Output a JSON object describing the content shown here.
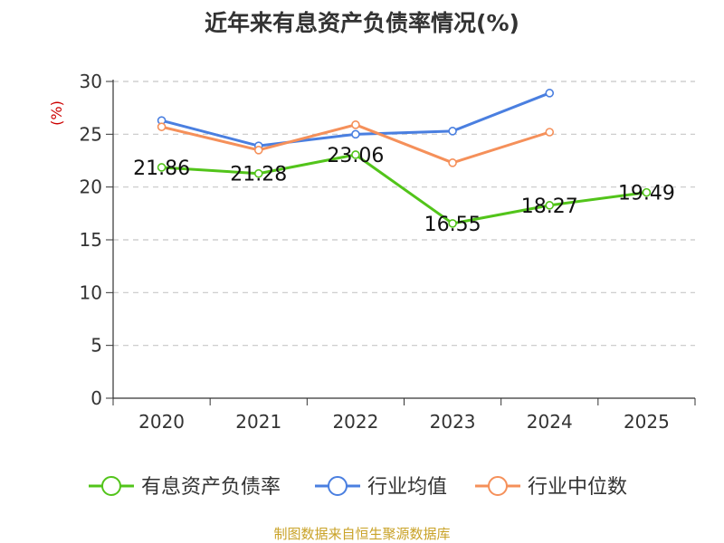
{
  "title": "近年来有息资产负债率情况(%)",
  "source": "制图数据来自恒生聚源数据库",
  "chart_data": {
    "type": "line",
    "title": "近年来有息资产负债率情况(%)",
    "ylabel": "(%)",
    "xlabel": "",
    "categories": [
      "2020",
      "2021",
      "2022",
      "2023",
      "2024",
      "2025"
    ],
    "ylim": [
      0,
      30
    ],
    "yticks": [
      0,
      5,
      10,
      15,
      20,
      25,
      30
    ],
    "grid": true,
    "legend_position": "bottom",
    "series": [
      {
        "name": "有息资产负债率",
        "color": "#52c41a",
        "values": [
          21.86,
          21.28,
          23.06,
          16.55,
          18.27,
          19.49
        ],
        "labels": [
          "21.86",
          "21.28",
          "23.06",
          "16.55",
          "18.27",
          "19.49"
        ]
      },
      {
        "name": "行业均值",
        "color": "#4a7fe0",
        "values": [
          26.3,
          23.9,
          25.0,
          25.3,
          28.9,
          null
        ]
      },
      {
        "name": "行业中位数",
        "color": "#f5905a",
        "values": [
          25.7,
          23.5,
          25.9,
          22.3,
          25.2,
          null
        ]
      }
    ]
  }
}
